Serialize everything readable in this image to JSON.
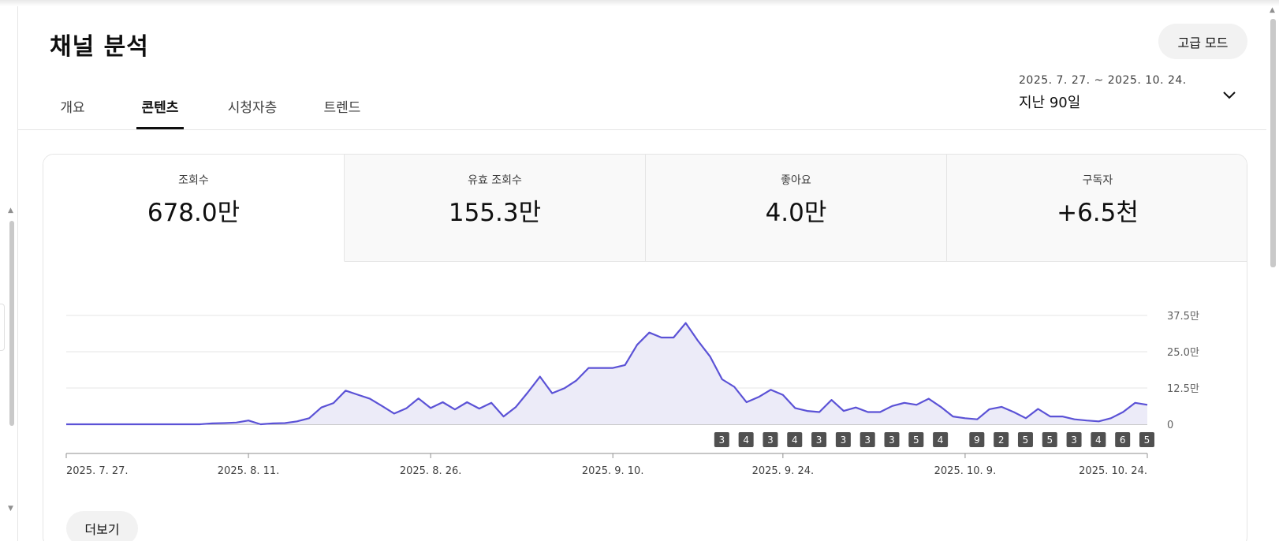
{
  "header": {
    "title": "채널 분석",
    "advanced_mode_label": "고급 모드"
  },
  "tabs": [
    {
      "label": "개요",
      "active": false
    },
    {
      "label": "콘텐츠",
      "active": true
    },
    {
      "label": "시청자층",
      "active": false
    },
    {
      "label": "트렌드",
      "active": false
    }
  ],
  "date_picker": {
    "range": "2025. 7. 27. ~ 2025. 10. 24.",
    "label": "지난 90일"
  },
  "metrics": [
    {
      "label": "조회수",
      "value": "678.0만",
      "active": true
    },
    {
      "label": "유효 조회수",
      "value": "155.3만",
      "active": false
    },
    {
      "label": "좋아요",
      "value": "4.0만",
      "active": false
    },
    {
      "label": "구독자",
      "value": "+6.5천",
      "active": false
    }
  ],
  "chart_data": {
    "type": "area",
    "y_ticks": [
      "0",
      "12.5만",
      "25.0만",
      "37.5만"
    ],
    "ylim": [
      0,
      37.5
    ],
    "x_tick_labels": [
      "2025. 7. 27.",
      "2025. 8. 11.",
      "2025. 8. 26.",
      "2025. 9. 10.",
      "2025. 9. 24.",
      "2025. 10. 9.",
      "2025. 10. 24."
    ],
    "x_tick_days": [
      0,
      15,
      30,
      45,
      59,
      74,
      89
    ],
    "series": [
      {
        "color": "#5b52d6",
        "fill": "#ecebf8",
        "values": [
          0,
          0,
          0,
          0,
          0,
          0,
          0,
          0,
          0,
          0,
          0,
          0,
          0.3,
          0.4,
          0.6,
          1.3,
          0,
          0.3,
          0.4,
          1.0,
          2.1,
          5.8,
          7.3,
          11.6,
          10.2,
          8.8,
          6.3,
          3.7,
          5.5,
          8.9,
          5.6,
          7.6,
          5.1,
          7.6,
          5.4,
          7.4,
          2.7,
          5.9,
          11.0,
          16.4,
          10.7,
          12.4,
          15.1,
          19.4,
          19.4,
          19.4,
          20.4,
          27.4,
          31.6,
          29.9,
          29.9,
          34.9,
          28.8,
          23.4,
          15.5,
          12.9,
          7.6,
          9.4,
          11.9,
          10.1,
          5.6,
          4.6,
          4.2,
          8.4,
          4.6,
          5.8,
          4.2,
          4.2,
          6.3,
          7.4,
          6.7,
          8.8,
          6.0,
          2.7,
          2.1,
          1.7,
          5.2,
          6.0,
          4.2,
          2.1,
          5.3,
          2.7,
          2.7,
          1.7,
          1.3,
          1.0,
          2.1,
          4.2,
          7.4,
          6.7
        ]
      }
    ],
    "markers": [
      {
        "day": 54,
        "label": "3"
      },
      {
        "day": 56,
        "label": "4"
      },
      {
        "day": 58,
        "label": "3"
      },
      {
        "day": 60,
        "label": "4"
      },
      {
        "day": 62,
        "label": "3"
      },
      {
        "day": 64,
        "label": "3"
      },
      {
        "day": 66,
        "label": "3"
      },
      {
        "day": 68,
        "label": "3"
      },
      {
        "day": 70,
        "label": "5"
      },
      {
        "day": 72,
        "label": "4"
      },
      {
        "day": 75,
        "label": "9"
      },
      {
        "day": 77,
        "label": "2"
      },
      {
        "day": 79,
        "label": "5"
      },
      {
        "day": 81,
        "label": "5"
      },
      {
        "day": 83,
        "label": "3"
      },
      {
        "day": 85,
        "label": "4"
      },
      {
        "day": 87,
        "label": "6"
      },
      {
        "day": 89,
        "label": "5"
      }
    ],
    "grid": true
  },
  "more_label": "더보기"
}
